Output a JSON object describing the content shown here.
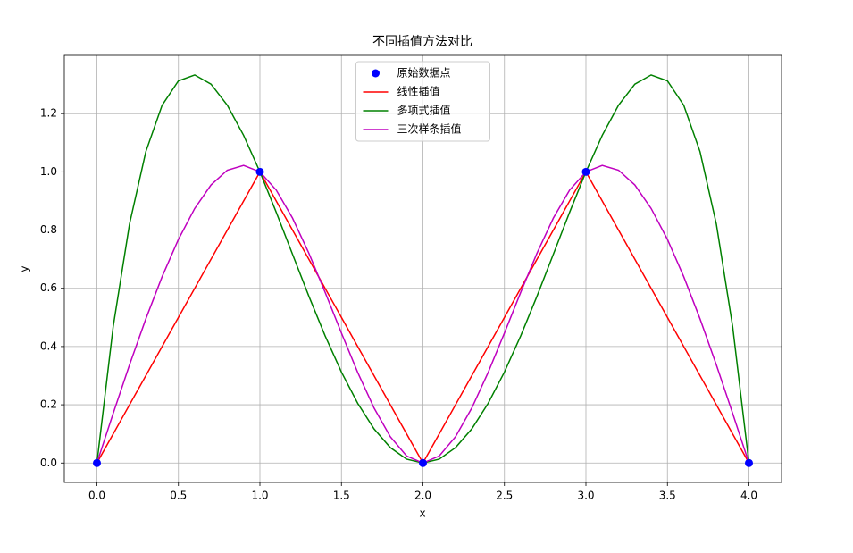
{
  "chart_data": {
    "type": "line",
    "title": "不同插值方法对比",
    "xlabel": "x",
    "ylabel": "y",
    "xlim": [
      -0.2,
      4.2
    ],
    "ylim": [
      -0.0667,
      1.4
    ],
    "xticks": [
      {
        "value": 0,
        "label": "0.0"
      },
      0.5,
      {
        "value": 1,
        "label": "1.0"
      },
      1.5,
      {
        "value": 2,
        "label": "2.0"
      },
      2.5,
      {
        "value": 3,
        "label": "3.0"
      },
      3.5,
      {
        "value": 4,
        "label": "4.0"
      }
    ],
    "yticks": [
      {
        "value": 0,
        "label": "0.0"
      },
      0.2,
      0.4,
      0.6,
      0.8,
      {
        "value": 1,
        "label": "1.0"
      },
      1.2
    ],
    "grid": true,
    "legend": "upper center",
    "series": [
      {
        "name": "原始数据点",
        "color": "#0000ff",
        "style": "markers",
        "x": [
          0,
          1,
          2,
          3,
          4
        ],
        "values": [
          0,
          1,
          0,
          1,
          0
        ]
      },
      {
        "name": "线性插值",
        "color": "#ff0000",
        "style": "line",
        "x": [
          0,
          1,
          2,
          3,
          4
        ],
        "values": [
          0,
          1,
          0,
          1,
          0
        ]
      },
      {
        "name": "多项式插值",
        "color": "#008000",
        "style": "line",
        "x": [
          0,
          0.1,
          0.2,
          0.3,
          0.4,
          0.5,
          0.6,
          0.7,
          0.8,
          0.9,
          1,
          1.1,
          1.2,
          1.3,
          1.4,
          1.5,
          1.6,
          1.7,
          1.8,
          1.9,
          2,
          2.1,
          2.2,
          2.3,
          2.4,
          2.5,
          2.6,
          2.7,
          2.8,
          2.9,
          3,
          3.1,
          3.2,
          3.3,
          3.4,
          3.5,
          3.6,
          3.7,
          3.8,
          3.9,
          4
        ],
        "values": [
          0,
          0.4693,
          0.8208,
          1.0693,
          1.2288,
          1.3125,
          1.3328,
          1.3013,
          1.2288,
          1.1253,
          1,
          0.8613,
          0.7168,
          0.5733,
          0.4368,
          0.3125,
          0.2048,
          0.1173,
          0.0528,
          0.0133,
          0,
          0.0133,
          0.0528,
          0.1173,
          0.2048,
          0.3125,
          0.4368,
          0.5733,
          0.7168,
          0.8613,
          1,
          1.1253,
          1.2288,
          1.3013,
          1.3328,
          1.3125,
          1.2288,
          1.0693,
          0.8208,
          0.4693,
          0
        ]
      },
      {
        "name": "三次样条插值",
        "color": "#bf00bf",
        "style": "line",
        "x": [
          0,
          0.1,
          0.2,
          0.3,
          0.4,
          0.5,
          0.6,
          0.7,
          0.8,
          0.9,
          1,
          1.1,
          1.2,
          1.3,
          1.4,
          1.5,
          1.6,
          1.7,
          1.8,
          1.9,
          2,
          2.1,
          2.2,
          2.3,
          2.4,
          2.5,
          2.6,
          2.7,
          2.8,
          2.9,
          3,
          3.1,
          3.2,
          3.3,
          3.4,
          3.5,
          3.6,
          3.7,
          3.8,
          3.9,
          4
        ],
        "values": [
          0,
          0.1707,
          0.3371,
          0.495,
          0.64,
          0.7679,
          0.8743,
          0.955,
          1.0057,
          1.0221,
          1,
          0.9373,
          0.8411,
          0.721,
          0.5863,
          0.4464,
          0.3109,
          0.189,
          0.0903,
          0.0241,
          0,
          0.0241,
          0.0903,
          0.189,
          0.3109,
          0.4464,
          0.5863,
          0.721,
          0.8411,
          0.9373,
          1,
          1.0221,
          1.0057,
          0.955,
          0.8743,
          0.7679,
          0.64,
          0.495,
          0.3371,
          0.1707,
          0
        ]
      }
    ]
  }
}
